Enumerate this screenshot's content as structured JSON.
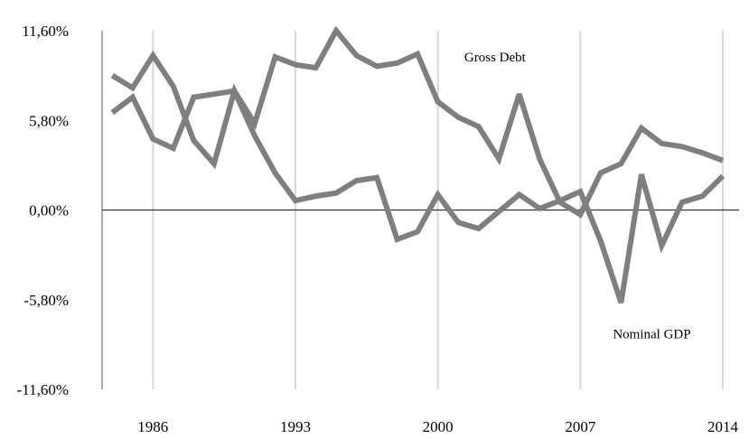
{
  "chart_data": {
    "type": "line",
    "title": "",
    "xlabel": "",
    "ylabel": "",
    "xlim": [
      1983.5,
      2014.8
    ],
    "ylim": [
      -11.6,
      11.6
    ],
    "y_ticks": [
      11.6,
      5.8,
      0,
      -5.8,
      -11.6
    ],
    "y_tick_labels": [
      "11,60%",
      "5,80%",
      "0,00%",
      "-5,80%",
      "-11,60%"
    ],
    "x_ticks": [
      1986,
      1993,
      2000,
      2007,
      2014
    ],
    "x_tick_labels": [
      "1986",
      "1993",
      "2000",
      "2007",
      "2014"
    ],
    "grid": "vertical",
    "legend": "none",
    "annotations": [
      {
        "text": "Gross Debt",
        "x": 2001.3,
        "y": 9.6
      },
      {
        "text": "Nominal GDP",
        "x": 2008.6,
        "y": -8.3
      }
    ],
    "series": [
      {
        "id": "gross-debt",
        "color": "#7f7f7f",
        "x": [
          1984,
          1985,
          1986,
          1987,
          1988,
          1989,
          1990,
          1991,
          1992,
          1993,
          1994,
          1995,
          1996,
          1997,
          1998,
          1999,
          2000,
          2001,
          2002,
          2003,
          2004,
          2005,
          2006,
          2007,
          2008,
          2009,
          2010,
          2011,
          2012,
          2013,
          2014
        ],
        "values": [
          6.3,
          7.3,
          4.6,
          4.0,
          7.3,
          7.5,
          7.7,
          5.6,
          9.9,
          9.4,
          9.2,
          11.6,
          10.0,
          9.3,
          9.5,
          10.1,
          7.0,
          6.0,
          5.4,
          3.3,
          7.5,
          3.3,
          0.5,
          -0.3,
          2.4,
          3.0,
          5.3,
          4.3,
          4.1,
          3.7,
          3.2
        ]
      },
      {
        "id": "nominal-gdp",
        "color": "#7f7f7f",
        "x": [
          1984,
          1985,
          1986,
          1987,
          1988,
          1989,
          1990,
          1991,
          1992,
          1993,
          1994,
          1995,
          1996,
          1997,
          1998,
          1999,
          2000,
          2001,
          2002,
          2003,
          2004,
          2005,
          2006,
          2007,
          2008,
          2009,
          2010,
          2011,
          2012,
          2013,
          2014
        ],
        "values": [
          8.7,
          7.9,
          10.0,
          8.0,
          4.5,
          3.0,
          7.7,
          4.8,
          2.4,
          0.6,
          0.9,
          1.1,
          1.9,
          2.1,
          -1.9,
          -1.4,
          1.0,
          -0.8,
          -1.2,
          -0.1,
          1.0,
          0.1,
          0.6,
          1.2,
          -2.0,
          -6.0,
          2.3,
          -2.3,
          0.5,
          0.9,
          2.2
        ]
      }
    ]
  }
}
